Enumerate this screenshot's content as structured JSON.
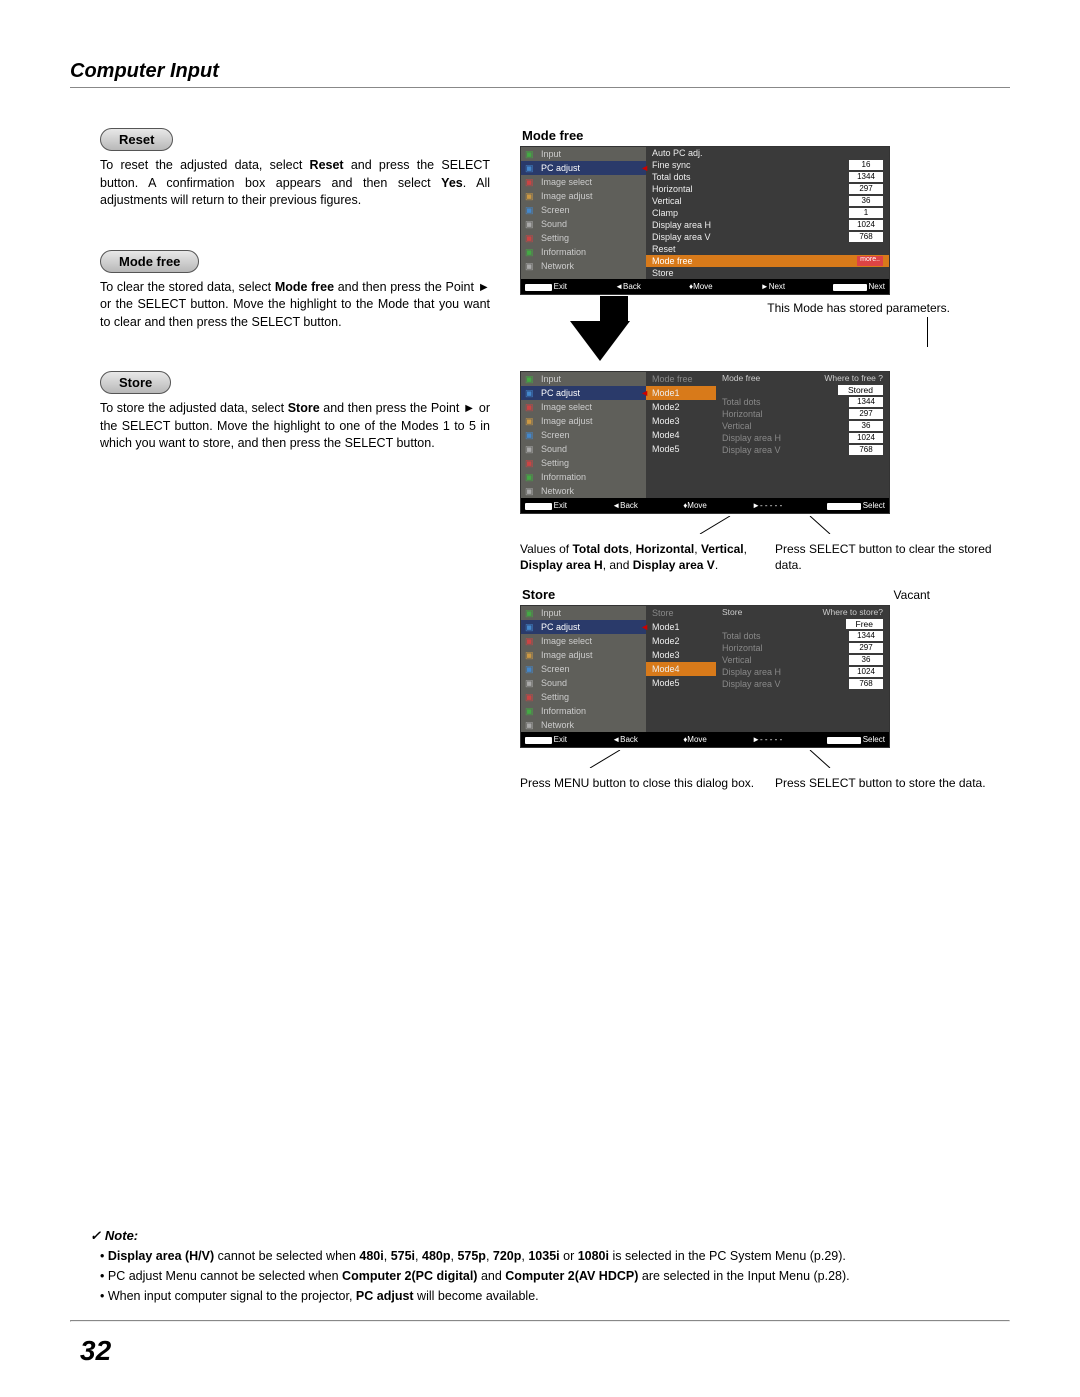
{
  "page": {
    "title": "Computer Input",
    "number": "32"
  },
  "pills": {
    "reset": "Reset",
    "modefree": "Mode free",
    "store": "Store"
  },
  "text": {
    "reset_a": "To reset the adjusted data, select ",
    "reset_b": " and press the SELECT button. A confirmation box appears and then select ",
    "reset_c": ". All adjustments will return to their previous figures.",
    "reset_bold1": "Reset",
    "reset_bold2": "Yes",
    "mf_a": "To clear the stored data, select ",
    "mf_bold": "Mode free",
    "mf_b": " and then press the Point ► or the SELECT button. Move the highlight to the Mode that you want to clear and then press the SELECT button.",
    "st_a": "To store the adjusted data, select ",
    "st_bold": "Store",
    "st_b": " and then press the Point ► or the SELECT button. Move the highlight to one of the Modes 1 to 5 in which you want to store, and then press the SELECT button."
  },
  "fig_titles": {
    "modefree": "Mode free",
    "store": "Store",
    "vacant": "Vacant"
  },
  "sidebar": {
    "items": [
      {
        "icon": "mk-green",
        "label": "Input"
      },
      {
        "icon": "mk-blue",
        "label": "PC adjust",
        "sel": true
      },
      {
        "icon": "mk-red",
        "label": "Image select"
      },
      {
        "icon": "mk-ora",
        "label": "Image adjust"
      },
      {
        "icon": "mk-blue",
        "label": "Screen"
      },
      {
        "icon": "mk-grey",
        "label": "Sound"
      },
      {
        "icon": "mk-red",
        "label": "Setting"
      },
      {
        "icon": "mk-green",
        "label": "Information"
      },
      {
        "icon": "mk-grey",
        "label": "Network"
      }
    ]
  },
  "params1": [
    {
      "l": "Auto PC adj.",
      "v": ""
    },
    {
      "l": "Fine sync",
      "v": "16"
    },
    {
      "l": "Total dots",
      "v": "1344"
    },
    {
      "l": "Horizontal",
      "v": "297"
    },
    {
      "l": "Vertical",
      "v": "36"
    },
    {
      "l": "Clamp",
      "v": "1"
    },
    {
      "l": "Display area H",
      "v": "1024"
    },
    {
      "l": "Display area V",
      "v": "768"
    },
    {
      "l": "Reset",
      "v": ""
    },
    {
      "l": "Mode free",
      "v": "more..",
      "hl": true
    },
    {
      "l": "Store",
      "v": ""
    }
  ],
  "modes": [
    "Mode1",
    "Mode2",
    "Mode3",
    "Mode4",
    "Mode5"
  ],
  "modefree_q": "Where to free ?",
  "store_q": "Where to store?",
  "stored_label": "Stored",
  "free_label": "Free",
  "params2": [
    {
      "l": "Total dots",
      "v": "1344"
    },
    {
      "l": "Horizontal",
      "v": "297"
    },
    {
      "l": "Vertical",
      "v": "36"
    },
    {
      "l": "Display area H",
      "v": "1024"
    },
    {
      "l": "Display area V",
      "v": "768"
    }
  ],
  "bb": {
    "exit": "Exit",
    "back": "Back",
    "move": "Move",
    "next": "Next",
    "sel_next": "Next",
    "select": "Select",
    "dash": "- - - - -"
  },
  "btags": {
    "menu": "MENU",
    "select": "SELECT"
  },
  "annot": {
    "top": "This Mode has stored parameters.",
    "values_a": "Values of ",
    "values_b": "Total dots",
    "values_c": ", ",
    "values_d": "Horizontal",
    "values_e": ", ",
    "values_f": "Vertical",
    "values_g": ", ",
    "values_h": "Display area H",
    "values_i": ", and ",
    "values_j": "Display area V",
    "values_k": ".",
    "press_clear": "Press SELECT button to clear the stored data.",
    "press_menu": "Press MENU button to close this dialog box.",
    "press_store": "Press SELECT button to store the data."
  },
  "note": {
    "hdr": "Note:",
    "n1_a": "Display area (H/V)",
    "n1_b": " cannot be selected when ",
    "n1_c": "480i",
    "n1_d": "575i",
    "n1_e": "480p",
    "n1_f": "575p",
    "n1_g": "720p",
    "n1_h": "1035i",
    "n1_i": "1080i",
    "n1_j": " is selected in the PC System Menu (p.29).",
    "n2_a": "PC adjust Menu cannot be selected when ",
    "n2_b": "Computer 2(PC digital)",
    "n2_c": " and ",
    "n2_d": "Computer 2(AV HDCP)",
    "n2_e": " are selected in the Input Menu (p.28).",
    "n3_a": "When input computer signal to the projector, ",
    "n3_b": "PC adjust",
    "n3_c": " will become available."
  }
}
